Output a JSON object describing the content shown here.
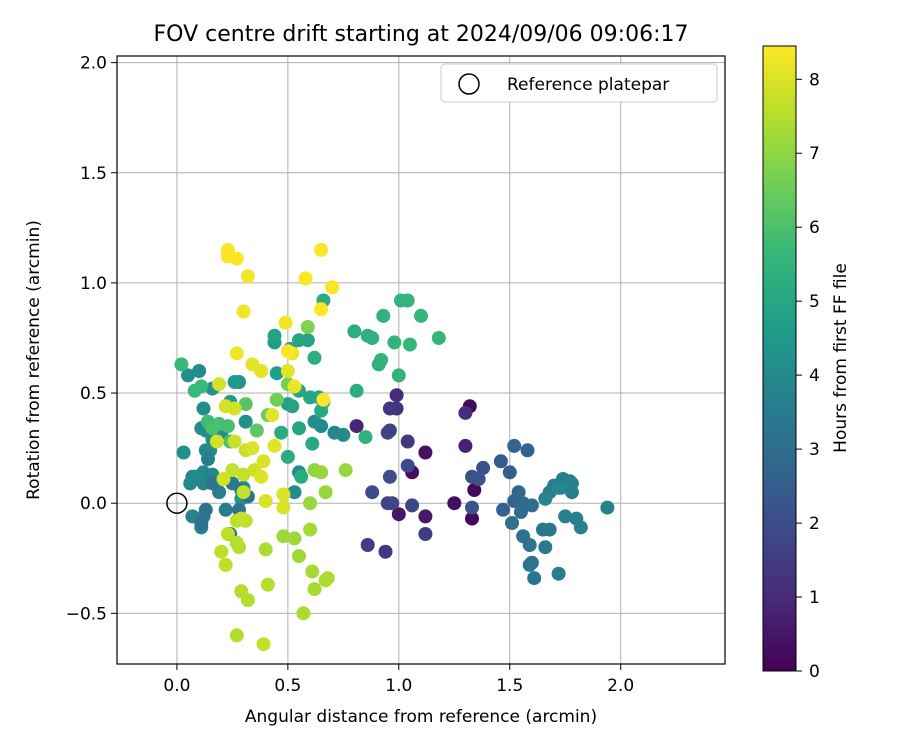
{
  "chart_data": {
    "type": "scatter",
    "title": "FOV centre drift starting at 2024/09/06 09:06:17",
    "xlabel": "Angular distance from reference (arcmin)",
    "ylabel": "Rotation from reference (arcmin)",
    "xlim": [
      -0.27,
      2.47
    ],
    "ylim": [
      -0.73,
      2.03
    ],
    "xticks": [
      0.0,
      0.5,
      1.0,
      1.5,
      2.0
    ],
    "xtick_labels": [
      "0.0",
      "0.5",
      "1.0",
      "1.5",
      "2.0"
    ],
    "yticks": [
      -0.5,
      0.0,
      0.5,
      1.0,
      1.5,
      2.0
    ],
    "ytick_labels": [
      "−0.5",
      "0.0",
      "0.5",
      "1.0",
      "1.5",
      "2.0"
    ],
    "grid": true,
    "legend": {
      "placement": "top-right",
      "label": "Reference platepar"
    },
    "reference_point": {
      "x": 0.0,
      "y": 0.0
    },
    "colorbar": {
      "label": "Hours from first FF file",
      "range": [
        0,
        8.45
      ],
      "ticks": [
        0,
        1,
        2,
        3,
        4,
        5,
        6,
        7,
        8
      ],
      "tick_labels": [
        "0",
        "1",
        "2",
        "3",
        "4",
        "5",
        "6",
        "7",
        "8"
      ],
      "colormap": [
        "#440154",
        "#482878",
        "#3e4989",
        "#31688e",
        "#26828e",
        "#1f9e89",
        "#35b779",
        "#6ece58",
        "#b5de2b",
        "#fde725"
      ]
    },
    "points": [
      [
        1.32,
        0.44,
        0.2
      ],
      [
        1.33,
        -0.07,
        0.2
      ],
      [
        1.34,
        0.06,
        0.2
      ],
      [
        1.25,
        0.0,
        0.3
      ],
      [
        1.06,
        0.14,
        0.3
      ],
      [
        1.12,
        0.23,
        0.4
      ],
      [
        1.0,
        -0.05,
        0.5
      ],
      [
        1.12,
        -0.06,
        0.6
      ],
      [
        1.3,
        0.26,
        0.8
      ],
      [
        0.81,
        0.35,
        0.9
      ],
      [
        0.99,
        0.49,
        1.0
      ],
      [
        1.3,
        0.41,
        1.1
      ],
      [
        0.96,
        0.43,
        1.3
      ],
      [
        0.99,
        0.43,
        1.3
      ],
      [
        1.04,
        0.28,
        1.4
      ],
      [
        0.94,
        -0.22,
        1.4
      ],
      [
        0.86,
        -0.19,
        1.5
      ],
      [
        1.12,
        -0.14,
        1.5
      ],
      [
        0.95,
        0.32,
        1.7
      ],
      [
        0.96,
        0.33,
        1.7
      ],
      [
        0.95,
        0.0,
        1.7
      ],
      [
        0.97,
        0.0,
        1.8
      ],
      [
        1.06,
        -0.01,
        1.8
      ],
      [
        1.04,
        0.17,
        1.9
      ],
      [
        0.88,
        0.05,
        2.0
      ],
      [
        0.96,
        0.12,
        2.0
      ],
      [
        1.38,
        0.16,
        2.1
      ],
      [
        1.33,
        0.12,
        2.2
      ],
      [
        1.36,
        0.11,
        2.2
      ],
      [
        1.33,
        -0.02,
        2.3
      ],
      [
        1.46,
        0.19,
        2.4
      ],
      [
        1.47,
        -0.03,
        2.6
      ],
      [
        1.5,
        0.14,
        2.5
      ],
      [
        1.52,
        0.26,
        2.7
      ],
      [
        1.58,
        0.24,
        2.7
      ],
      [
        1.54,
        0.05,
        2.8
      ],
      [
        1.52,
        0.01,
        2.8
      ],
      [
        1.56,
        0.0,
        2.9
      ],
      [
        1.6,
        -0.01,
        3.0
      ],
      [
        1.55,
        -0.04,
        3.0
      ],
      [
        1.51,
        -0.09,
        3.1
      ],
      [
        1.56,
        -0.15,
        3.1
      ],
      [
        1.59,
        -0.19,
        3.2
      ],
      [
        1.6,
        -0.27,
        3.2
      ],
      [
        1.59,
        -0.28,
        3.2
      ],
      [
        1.61,
        -0.34,
        3.3
      ],
      [
        1.65,
        -0.12,
        3.3
      ],
      [
        1.68,
        -0.12,
        3.4
      ],
      [
        1.66,
        -0.2,
        3.4
      ],
      [
        1.7,
        0.08,
        3.5
      ],
      [
        1.73,
        0.07,
        3.5
      ],
      [
        1.74,
        0.11,
        3.5
      ],
      [
        1.77,
        0.1,
        3.5
      ],
      [
        1.78,
        0.05,
        3.6
      ],
      [
        1.68,
        0.05,
        3.6
      ],
      [
        1.72,
        -0.32,
        3.6
      ],
      [
        1.75,
        -0.06,
        3.7
      ],
      [
        1.8,
        -0.07,
        3.7
      ],
      [
        1.82,
        -0.11,
        3.7
      ],
      [
        1.94,
        -0.02,
        3.8
      ],
      [
        1.78,
        0.09,
        3.8
      ],
      [
        1.72,
        0.07,
        3.9
      ],
      [
        1.66,
        0.02,
        3.9
      ],
      [
        0.71,
        0.32,
        3.9
      ],
      [
        0.75,
        0.31,
        4.0
      ],
      [
        0.65,
        0.35,
        4.0
      ],
      [
        0.62,
        0.37,
        4.1
      ],
      [
        0.53,
        0.05,
        4.1
      ],
      [
        0.55,
        0.14,
        4.2
      ],
      [
        0.31,
        0.37,
        4.2
      ],
      [
        0.3,
        0.07,
        4.2
      ],
      [
        0.29,
        0.02,
        4.3
      ],
      [
        0.28,
        0.55,
        4.3
      ],
      [
        0.16,
        0.52,
        4.3
      ],
      [
        0.12,
        0.43,
        4.2
      ],
      [
        0.05,
        0.58,
        4.2
      ],
      [
        0.1,
        0.6,
        4.1
      ],
      [
        0.11,
        0.34,
        4.1
      ],
      [
        0.13,
        0.33,
        4.2
      ],
      [
        0.16,
        0.29,
        4.1
      ],
      [
        0.2,
        0.31,
        4.0
      ],
      [
        0.15,
        0.24,
        4.0
      ],
      [
        0.13,
        0.24,
        4.0
      ],
      [
        0.12,
        0.14,
        4.0
      ],
      [
        0.16,
        0.13,
        3.9
      ],
      [
        0.09,
        0.12,
        3.9
      ],
      [
        0.12,
        0.09,
        3.9
      ],
      [
        0.06,
        0.09,
        3.9
      ],
      [
        0.11,
        -0.11,
        3.8
      ],
      [
        0.07,
        -0.06,
        3.8
      ],
      [
        0.12,
        -0.06,
        3.7
      ],
      [
        0.15,
        0.1,
        3.7
      ],
      [
        0.14,
        0.2,
        3.6
      ],
      [
        0.19,
        0.05,
        3.6
      ],
      [
        0.22,
        -0.03,
        3.5
      ],
      [
        0.25,
        0.09,
        3.5
      ],
      [
        0.16,
        0.09,
        3.4
      ],
      [
        0.24,
        -0.14,
        3.4
      ],
      [
        0.28,
        -0.03,
        3.3
      ],
      [
        0.32,
        0.03,
        3.3
      ],
      [
        0.29,
        0.06,
        3.2
      ],
      [
        0.13,
        -0.03,
        3.2
      ],
      [
        0.11,
        -0.09,
        3.1
      ],
      [
        0.03,
        0.23,
        4.2
      ],
      [
        0.08,
        0.12,
        4.1
      ],
      [
        0.07,
        0.12,
        4.0
      ],
      [
        0.26,
        0.55,
        4.6
      ],
      [
        0.24,
        0.46,
        4.6
      ],
      [
        0.44,
        0.73,
        4.7
      ],
      [
        0.45,
        0.59,
        4.7
      ],
      [
        0.5,
        0.45,
        4.8
      ],
      [
        0.51,
        0.7,
        4.8
      ],
      [
        0.55,
        0.74,
        4.9
      ],
      [
        0.59,
        0.74,
        4.9
      ],
      [
        0.44,
        0.76,
        4.9
      ],
      [
        0.52,
        0.44,
        4.9
      ],
      [
        0.55,
        0.51,
        5.0
      ],
      [
        0.6,
        0.48,
        5.0
      ],
      [
        0.64,
        0.48,
        5.0
      ],
      [
        0.55,
        0.34,
        5.0
      ],
      [
        0.61,
        0.27,
        5.1
      ],
      [
        0.65,
        0.42,
        5.1
      ],
      [
        0.66,
        0.46,
        5.1
      ],
      [
        0.47,
        0.32,
        5.2
      ],
      [
        0.5,
        0.21,
        5.2
      ],
      [
        0.56,
        0.12,
        5.2
      ],
      [
        0.66,
        0.92,
        5.2
      ],
      [
        0.62,
        0.66,
        5.3
      ],
      [
        0.8,
        0.78,
        5.3
      ],
      [
        0.81,
        0.51,
        5.3
      ],
      [
        0.85,
        0.3,
        5.4
      ],
      [
        0.88,
        0.75,
        5.4
      ],
      [
        0.86,
        0.76,
        5.4
      ],
      [
        0.91,
        0.63,
        5.4
      ],
      [
        0.92,
        0.65,
        5.5
      ],
      [
        0.93,
        0.85,
        5.5
      ],
      [
        0.98,
        0.73,
        5.5
      ],
      [
        1.0,
        0.58,
        5.5
      ],
      [
        1.01,
        0.92,
        5.5
      ],
      [
        1.04,
        0.92,
        5.6
      ],
      [
        1.05,
        0.72,
        5.6
      ],
      [
        1.1,
        0.85,
        5.6
      ],
      [
        1.18,
        0.75,
        5.6
      ],
      [
        0.08,
        0.51,
        5.7
      ],
      [
        0.02,
        0.63,
        5.7
      ],
      [
        0.11,
        0.53,
        5.7
      ],
      [
        0.14,
        0.37,
        5.8
      ],
      [
        0.19,
        0.36,
        5.9
      ],
      [
        0.23,
        0.35,
        5.9
      ],
      [
        0.24,
        0.28,
        6.0
      ],
      [
        0.16,
        0.34,
        6.0
      ],
      [
        0.31,
        0.45,
        6.2
      ],
      [
        0.36,
        0.33,
        6.3
      ],
      [
        0.41,
        0.4,
        6.5
      ],
      [
        0.45,
        0.47,
        6.6
      ],
      [
        0.5,
        0.54,
        6.7
      ],
      [
        0.59,
        0.8,
        6.8
      ],
      [
        0.62,
        0.15,
        7.0
      ],
      [
        0.65,
        0.14,
        7.1
      ],
      [
        0.76,
        0.15,
        7.1
      ],
      [
        0.67,
        0.05,
        7.1
      ],
      [
        0.6,
        0.0,
        7.1
      ],
      [
        0.53,
        -0.16,
        7.2
      ],
      [
        0.48,
        -0.15,
        7.2
      ],
      [
        0.55,
        -0.24,
        7.2
      ],
      [
        0.6,
        -0.12,
        7.3
      ],
      [
        0.61,
        -0.31,
        7.3
      ],
      [
        0.62,
        -0.39,
        7.3
      ],
      [
        0.67,
        -0.35,
        7.4
      ],
      [
        0.68,
        -0.34,
        7.4
      ],
      [
        0.57,
        -0.5,
        7.4
      ],
      [
        0.4,
        -0.21,
        7.4
      ],
      [
        0.41,
        -0.37,
        7.5
      ],
      [
        0.29,
        -0.4,
        7.5
      ],
      [
        0.32,
        -0.44,
        7.5
      ],
      [
        0.27,
        -0.18,
        7.5
      ],
      [
        0.28,
        -0.2,
        7.5
      ],
      [
        0.27,
        -0.6,
        7.5
      ],
      [
        0.22,
        -0.28,
        7.6
      ],
      [
        0.2,
        -0.22,
        7.6
      ],
      [
        0.23,
        -0.14,
        7.6
      ],
      [
        0.27,
        -0.08,
        7.6
      ],
      [
        0.31,
        -0.08,
        7.6
      ],
      [
        0.29,
        -0.07,
        7.7
      ],
      [
        0.39,
        -0.64,
        7.7
      ],
      [
        0.3,
        0.05,
        7.7
      ],
      [
        0.25,
        0.15,
        7.7
      ],
      [
        0.3,
        0.13,
        7.7
      ],
      [
        0.31,
        0.24,
        7.8
      ],
      [
        0.35,
        0.15,
        7.8
      ],
      [
        0.26,
        0.28,
        7.8
      ],
      [
        0.22,
        0.44,
        7.9
      ],
      [
        0.18,
        0.28,
        7.9
      ],
      [
        0.21,
        0.11,
        7.9
      ],
      [
        0.19,
        0.54,
        7.9
      ],
      [
        0.26,
        0.43,
        7.9
      ],
      [
        0.34,
        0.25,
        8.0
      ],
      [
        0.39,
        0.19,
        8.0
      ],
      [
        0.38,
        0.12,
        8.0
      ],
      [
        0.4,
        0.01,
        8.0
      ],
      [
        0.48,
        0.04,
        8.0
      ],
      [
        0.48,
        -0.02,
        8.0
      ],
      [
        0.44,
        0.26,
        8.1
      ],
      [
        0.43,
        0.4,
        8.1
      ],
      [
        0.38,
        0.6,
        8.1
      ],
      [
        0.34,
        0.63,
        8.1
      ],
      [
        0.5,
        0.6,
        8.1
      ],
      [
        0.52,
        0.68,
        8.2
      ],
      [
        0.53,
        0.53,
        8.2
      ],
      [
        0.49,
        0.82,
        8.3
      ],
      [
        0.3,
        0.87,
        8.3
      ],
      [
        0.27,
        0.68,
        8.3
      ],
      [
        0.32,
        1.03,
        8.3
      ],
      [
        0.23,
        1.12,
        8.4
      ],
      [
        0.27,
        1.11,
        8.4
      ],
      [
        0.23,
        1.15,
        8.4
      ],
      [
        0.58,
        1.02,
        8.4
      ],
      [
        0.65,
        1.15,
        8.4
      ],
      [
        0.7,
        0.98,
        8.4
      ],
      [
        0.65,
        0.88,
        8.4
      ],
      [
        0.66,
        0.47,
        8.4
      ],
      [
        0.5,
        0.69,
        8.4
      ]
    ]
  }
}
